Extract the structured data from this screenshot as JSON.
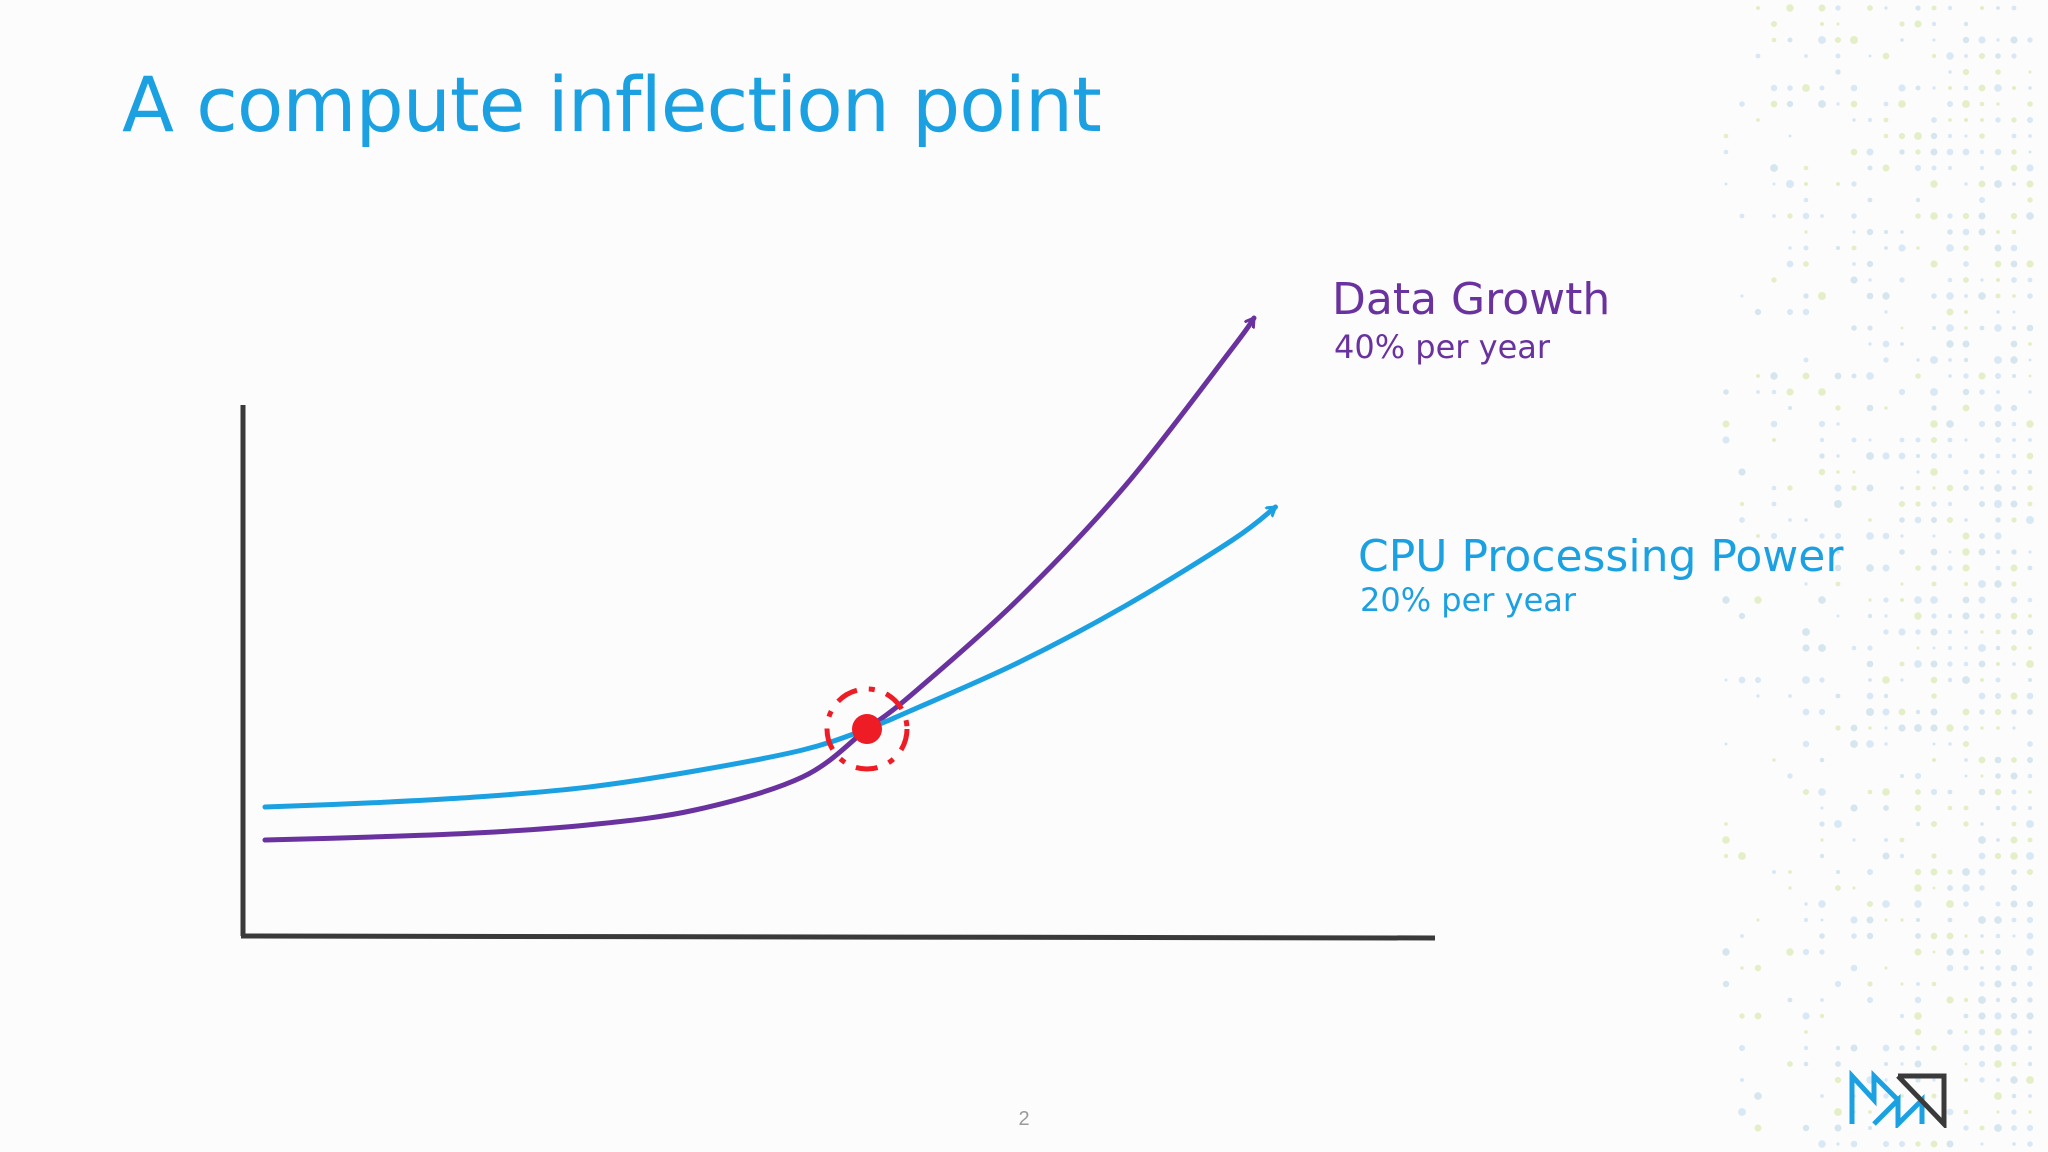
{
  "slide": {
    "title": "A compute inflection point",
    "page_number": "2",
    "logo_icon": "company-logo-icon"
  },
  "colors": {
    "title": "#1ba1e2",
    "data_growth": "#6a329f",
    "cpu_power": "#1ba1e2",
    "axes": "#3a3a3a",
    "inflection_marker": "#ee1c25",
    "dot_pattern": [
      "#d8e8f4",
      "#e4efc8",
      "#d6e6ee"
    ]
  },
  "chart_data": {
    "type": "line",
    "title": "A compute inflection point",
    "xlabel": "",
    "ylabel": "",
    "x_axis_ticks": false,
    "y_axis_ticks": false,
    "grid": false,
    "xlim": [
      0,
      10
    ],
    "ylim": [
      0,
      10
    ],
    "series": [
      {
        "name": "Data Growth",
        "subtitle": "40% per year",
        "color": "#6a329f",
        "arrow_at_end": true,
        "x": [
          0,
          1,
          2,
          3,
          4,
          5,
          5.6,
          6,
          7,
          8,
          9,
          9.2
        ],
        "y": [
          1.0,
          1.05,
          1.12,
          1.25,
          1.5,
          2.05,
          2.85,
          3.4,
          5.0,
          6.9,
          9.2,
          9.7
        ]
      },
      {
        "name": "CPU Processing Power",
        "subtitle": "20% per year",
        "color": "#1ba1e2",
        "arrow_at_end": true,
        "x": [
          0,
          1,
          2,
          3,
          4,
          5,
          5.6,
          6,
          7,
          8,
          9,
          9.4
        ],
        "y": [
          1.55,
          1.62,
          1.72,
          1.88,
          2.15,
          2.5,
          2.85,
          3.15,
          3.95,
          4.9,
          6.0,
          6.55
        ]
      }
    ],
    "annotations": [
      {
        "name": "inflection point",
        "x": 5.6,
        "y": 2.85,
        "style": "red dot with dashed circle"
      }
    ]
  }
}
